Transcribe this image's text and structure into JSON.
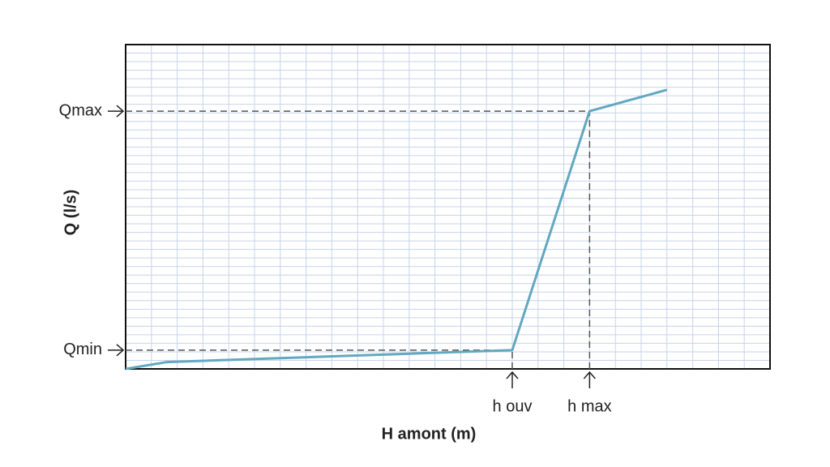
{
  "chart_data": {
    "type": "line",
    "x_label": "H amont (m)",
    "y_label": "Q (l/s)",
    "x": [
      0,
      1.6,
      15,
      18,
      21
    ],
    "series": [
      {
        "color": "#62a8c0",
        "values": [
          0,
          0.8,
          2.2,
          30.2,
          32.7
        ]
      }
    ],
    "xlim": [
      0,
      25
    ],
    "ylim": [
      0,
      38
    ],
    "xticks": [
      {
        "value": 15,
        "label": "h ouv"
      },
      {
        "value": 18,
        "label": "h max"
      }
    ],
    "yticks": [
      {
        "value": 2.2,
        "label": "Qmin"
      },
      {
        "value": 30.2,
        "label": "Qmax"
      }
    ],
    "grid": true
  }
}
